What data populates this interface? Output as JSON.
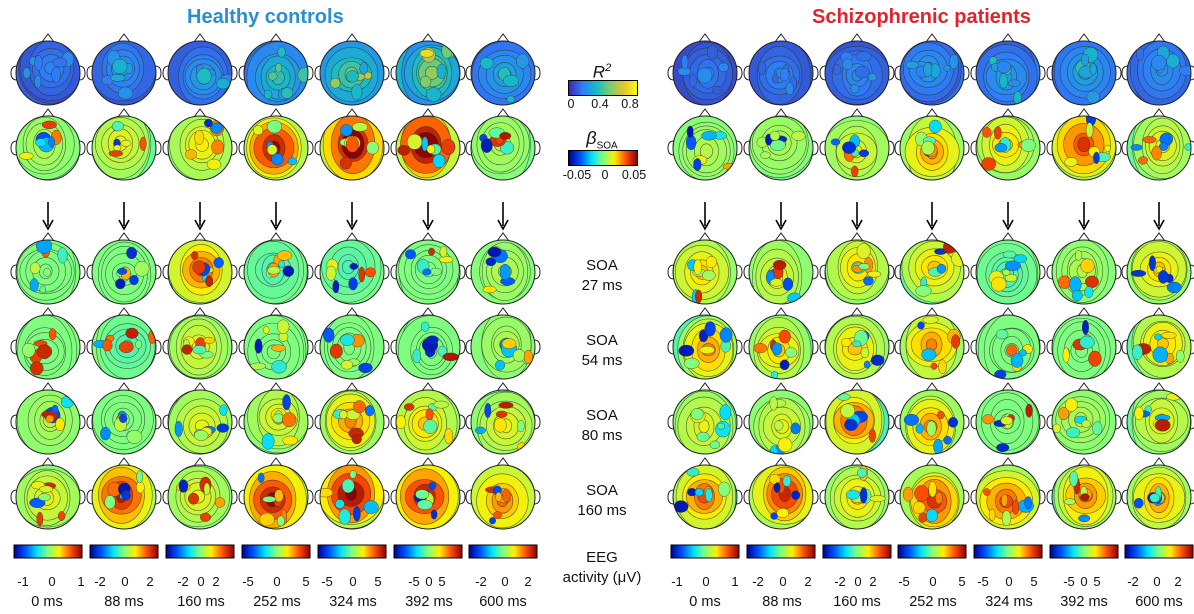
{
  "groups": {
    "left_title": "Healthy controls",
    "right_title": "Schizophrenic patients",
    "left_color": "#2a8fd0",
    "right_color": "#e2232c"
  },
  "time_labels": [
    "0 ms",
    "88 ms",
    "160 ms",
    "252 ms",
    "324 ms",
    "392 ms",
    "600 ms"
  ],
  "legend": {
    "r2_label": "R",
    "r2_sup": "2",
    "r2_ticks": [
      "0",
      "0.4",
      "0.8"
    ],
    "beta_label": "β",
    "beta_sub": "SOA",
    "beta_ticks": [
      "-0.05",
      "0",
      "0.05"
    ]
  },
  "row_labels": [
    {
      "line1": "SOA",
      "line2": "27 ms"
    },
    {
      "line1": "SOA",
      "line2": "54 ms"
    },
    {
      "line1": "SOA",
      "line2": "80 ms"
    },
    {
      "line1": "SOA",
      "line2": "160 ms"
    }
  ],
  "eeg_label": {
    "line1": "EEG",
    "line2": "activity (μV)"
  },
  "colorbar_ticks": {
    "left": [
      [
        "-1",
        "0",
        "1"
      ],
      [
        "-2",
        "0",
        "2"
      ],
      [
        "-2",
        "0",
        "2"
      ],
      [
        "-5",
        "0",
        "5"
      ],
      [
        "-5",
        "0",
        "5"
      ],
      [
        "-5",
        "0",
        "5"
      ],
      [
        "-2",
        "0",
        "2"
      ]
    ],
    "right": [
      [
        "-1",
        "0",
        "1"
      ],
      [
        "-2",
        "0",
        "2"
      ],
      [
        "-2",
        "0",
        "2"
      ],
      [
        "-5",
        "0",
        "5"
      ],
      [
        "-5",
        "0",
        "5"
      ],
      [
        "-5",
        "0",
        "5"
      ],
      [
        "-2",
        "0",
        "2"
      ]
    ]
  },
  "colormaps": {
    "jet": [
      "#00008f",
      "#0050ff",
      "#00dfff",
      "#7fff7f",
      "#ffef00",
      "#ff4f00",
      "#8f0000"
    ],
    "parula": [
      "#3e26a8",
      "#2d7ff9",
      "#16b9c9",
      "#77ce70",
      "#e6c32d",
      "#f9fb15"
    ]
  },
  "maps": {
    "left": {
      "r2": [
        0.22,
        0.28,
        0.32,
        0.45,
        0.55,
        0.65,
        0.35
      ],
      "beta": [
        0.55,
        0.6,
        0.62,
        0.85,
        0.93,
        0.96,
        0.55
      ],
      "soa27": [
        0.5,
        0.5,
        0.75,
        0.45,
        0.45,
        0.5,
        0.55
      ],
      "soa54": [
        0.5,
        0.45,
        0.6,
        0.5,
        0.5,
        0.5,
        0.55
      ],
      "soa80": [
        0.55,
        0.5,
        0.6,
        0.6,
        0.7,
        0.65,
        0.6
      ],
      "soa160": [
        0.6,
        0.82,
        0.6,
        0.85,
        0.88,
        0.86,
        0.72
      ]
    },
    "right": {
      "r2": [
        0.2,
        0.22,
        0.25,
        0.3,
        0.32,
        0.35,
        0.28
      ],
      "beta": [
        0.55,
        0.55,
        0.6,
        0.7,
        0.65,
        0.78,
        0.6
      ],
      "soa27": [
        0.65,
        0.6,
        0.65,
        0.65,
        0.45,
        0.55,
        0.65
      ],
      "soa54": [
        0.7,
        0.65,
        0.65,
        0.7,
        0.5,
        0.5,
        0.65
      ],
      "soa80": [
        0.6,
        0.6,
        0.75,
        0.7,
        0.5,
        0.55,
        0.6
      ],
      "soa160": [
        0.75,
        0.8,
        0.65,
        0.78,
        0.75,
        0.72,
        0.7
      ]
    }
  }
}
